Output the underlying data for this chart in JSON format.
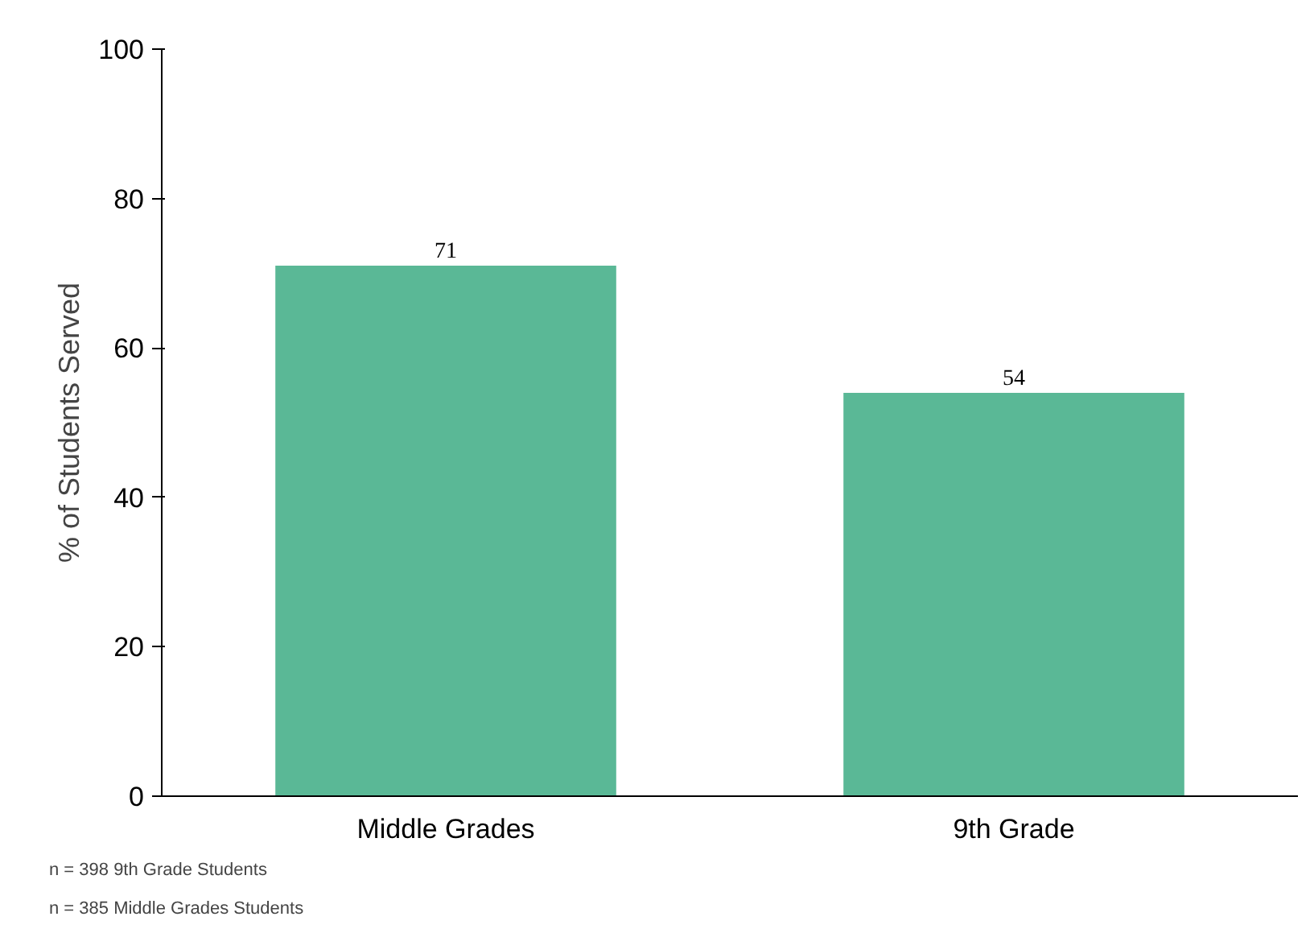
{
  "chart_data": {
    "type": "bar",
    "ylabel": "% of Students Served",
    "categories": [
      "Middle Grades",
      "9th Grade"
    ],
    "values": [
      71,
      54
    ],
    "color": "#5ab896",
    "ylim": [
      0,
      100
    ],
    "yticks": [
      0,
      20,
      40,
      60,
      80,
      100
    ],
    "grid": false,
    "data_labels": true,
    "annotations": [
      "n = 398 9th Grade Students",
      "n = 385 Middle Grades Students"
    ]
  }
}
